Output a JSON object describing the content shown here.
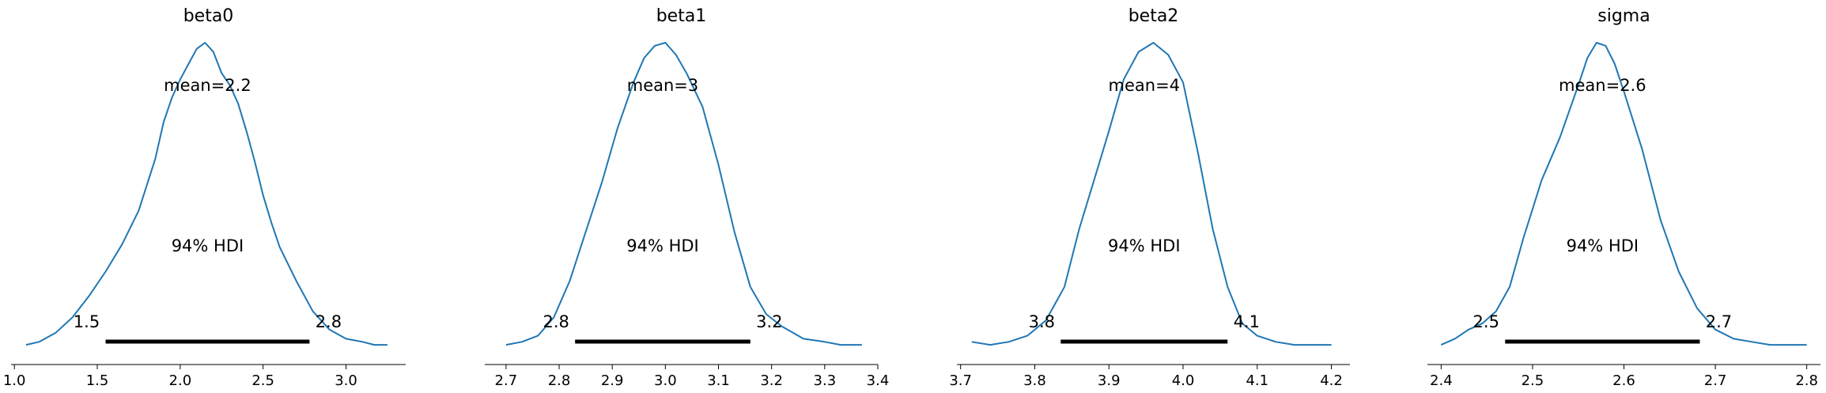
{
  "chart_data": [
    {
      "type": "area",
      "title": "beta0",
      "mean_label": "mean=2.2",
      "hdi_label": "94% HDI",
      "hdi": [
        1.55,
        2.78
      ],
      "hdi_low_label": "1.5",
      "hdi_high_label": "2.8",
      "xlim": [
        0.98,
        3.36
      ],
      "xticks": [
        1.0,
        1.5,
        2.0,
        2.5,
        3.0
      ],
      "xtick_labels": [
        "1.0",
        "1.5",
        "2.0",
        "2.5",
        "3.0"
      ],
      "density": {
        "x": [
          1.07,
          1.15,
          1.25,
          1.35,
          1.45,
          1.55,
          1.65,
          1.75,
          1.85,
          1.9,
          1.95,
          2.0,
          2.05,
          2.1,
          2.15,
          2.2,
          2.25,
          2.3,
          2.35,
          2.4,
          2.45,
          2.5,
          2.55,
          2.6,
          2.7,
          2.8,
          2.9,
          3.0,
          3.1,
          3.17,
          3.25
        ],
        "y": [
          0.01,
          0.02,
          0.05,
          0.1,
          0.17,
          0.25,
          0.34,
          0.45,
          0.62,
          0.74,
          0.82,
          0.88,
          0.93,
          0.98,
          1.0,
          0.97,
          0.9,
          0.86,
          0.8,
          0.71,
          0.61,
          0.5,
          0.41,
          0.33,
          0.22,
          0.12,
          0.06,
          0.03,
          0.02,
          0.01,
          0.01
        ]
      }
    },
    {
      "type": "area",
      "title": "beta1",
      "mean_label": "mean=3",
      "hdi_label": "94% HDI",
      "hdi": [
        2.83,
        3.16
      ],
      "hdi_low_label": "2.8",
      "hdi_high_label": "3.2",
      "xlim": [
        2.66,
        3.4
      ],
      "xticks": [
        2.7,
        2.8,
        2.9,
        3.0,
        3.1,
        3.2,
        3.3,
        3.4
      ],
      "xtick_labels": [
        "2.7",
        "2.8",
        "2.9",
        "3.0",
        "3.1",
        "3.2",
        "3.3",
        "3.4"
      ],
      "density": {
        "x": [
          2.7,
          2.73,
          2.76,
          2.79,
          2.82,
          2.85,
          2.88,
          2.91,
          2.94,
          2.96,
          2.98,
          3.0,
          3.02,
          3.04,
          3.07,
          3.1,
          3.13,
          3.16,
          3.19,
          3.22,
          3.26,
          3.3,
          3.33,
          3.37
        ],
        "y": [
          0.01,
          0.02,
          0.04,
          0.1,
          0.22,
          0.38,
          0.54,
          0.72,
          0.87,
          0.95,
          0.99,
          1.0,
          0.96,
          0.9,
          0.79,
          0.6,
          0.38,
          0.2,
          0.11,
          0.07,
          0.03,
          0.02,
          0.01,
          0.01
        ]
      }
    },
    {
      "type": "area",
      "title": "beta2",
      "mean_label": "mean=4",
      "hdi_label": "94% HDI",
      "hdi": [
        3.835,
        4.06
      ],
      "hdi_low_label": "3.8",
      "hdi_high_label": "4.1",
      "xlim": [
        3.695,
        4.225
      ],
      "xticks": [
        3.7,
        3.8,
        3.9,
        4.0,
        4.1,
        4.2
      ],
      "xtick_labels": [
        "3.7",
        "3.8",
        "3.9",
        "4.0",
        "4.1",
        "4.2"
      ],
      "density": {
        "x": [
          3.715,
          3.74,
          3.765,
          3.79,
          3.815,
          3.84,
          3.86,
          3.88,
          3.9,
          3.92,
          3.94,
          3.96,
          3.98,
          4.0,
          4.02,
          4.04,
          4.06,
          4.08,
          4.1,
          4.125,
          4.15,
          4.18,
          4.2
        ],
        "y": [
          0.02,
          0.01,
          0.02,
          0.04,
          0.09,
          0.2,
          0.39,
          0.55,
          0.71,
          0.88,
          0.97,
          1.0,
          0.96,
          0.87,
          0.64,
          0.39,
          0.2,
          0.08,
          0.04,
          0.02,
          0.01,
          0.01,
          0.01
        ]
      }
    },
    {
      "type": "area",
      "title": "sigma",
      "mean_label": "mean=2.6",
      "hdi_label": "94% HDI",
      "hdi": [
        2.47,
        2.683
      ],
      "hdi_low_label": "2.5",
      "hdi_high_label": "2.7",
      "xlim": [
        2.385,
        2.815
      ],
      "xticks": [
        2.4,
        2.5,
        2.6,
        2.7,
        2.8
      ],
      "xtick_labels": [
        "2.4",
        "2.5",
        "2.6",
        "2.7",
        "2.8"
      ],
      "density": {
        "x": [
          2.4,
          2.415,
          2.43,
          2.445,
          2.46,
          2.475,
          2.49,
          2.51,
          2.53,
          2.55,
          2.56,
          2.57,
          2.58,
          2.59,
          2.6,
          2.62,
          2.64,
          2.66,
          2.68,
          2.7,
          2.72,
          2.74,
          2.76,
          2.78,
          2.8
        ],
        "y": [
          0.01,
          0.03,
          0.06,
          0.08,
          0.12,
          0.2,
          0.36,
          0.55,
          0.69,
          0.86,
          0.95,
          1.0,
          0.99,
          0.93,
          0.84,
          0.65,
          0.42,
          0.25,
          0.13,
          0.06,
          0.03,
          0.02,
          0.01,
          0.01,
          0.01
        ]
      }
    }
  ]
}
